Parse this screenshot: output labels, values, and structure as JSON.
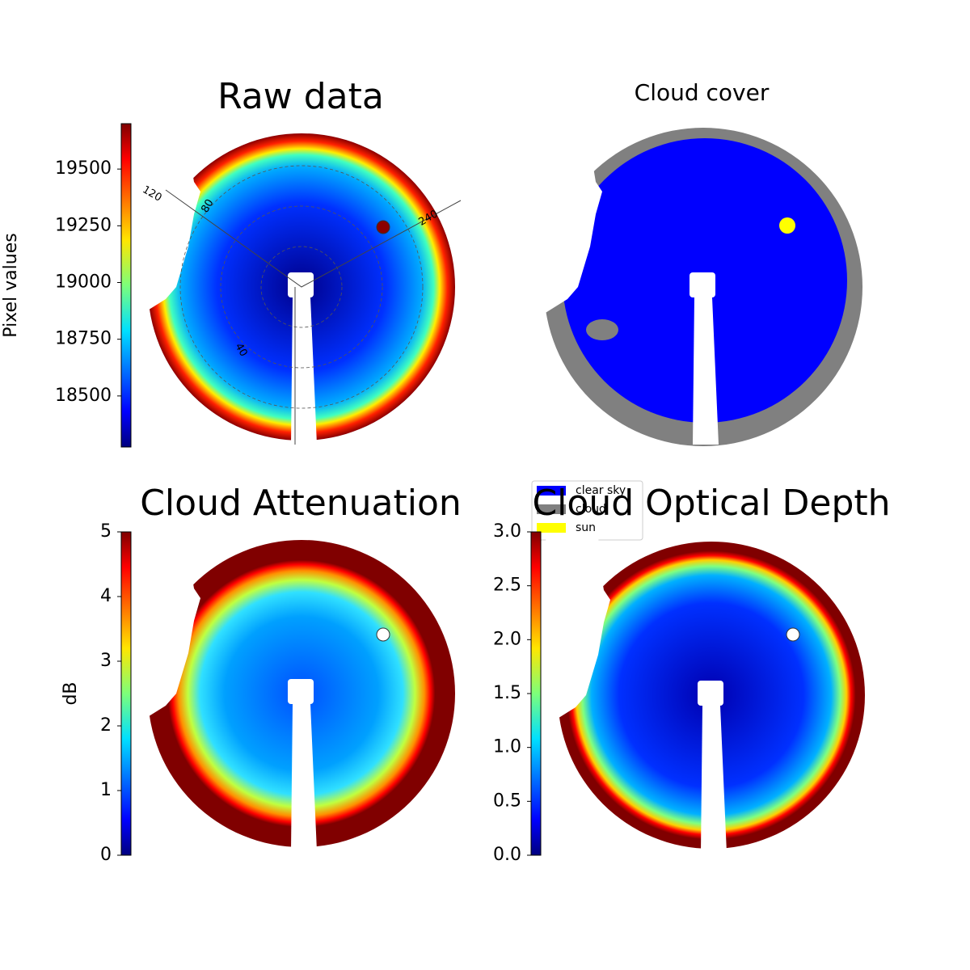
{
  "chart_data": [
    {
      "type": "image",
      "title": "Raw data",
      "colorbar_label": "Pixel values",
      "clim": [
        18275,
        19700
      ],
      "cticks": [
        18500,
        18750,
        19000,
        19250,
        19500
      ],
      "annotations": [
        "120",
        "80",
        "240",
        "40"
      ]
    },
    {
      "type": "categorical_image",
      "title": "Cloud cover",
      "legend_loc": "lower left",
      "legend": [
        {
          "label": "clear sky",
          "color": "#0000ff"
        },
        {
          "label": "cloud",
          "color": "#808080"
        },
        {
          "label": "sun",
          "color": "#ffff00"
        }
      ]
    },
    {
      "type": "image",
      "title": "Cloud Attenuation",
      "colorbar_label": "dB",
      "clim": [
        0,
        5
      ],
      "cticks": [
        0,
        1,
        2,
        3,
        4,
        5
      ]
    },
    {
      "type": "image",
      "title": "Cloud Optical Depth",
      "clim": [
        0,
        3
      ],
      "cticks": [
        {
          "value": 0,
          "label": "0.0"
        },
        0.5,
        {
          "value": 1,
          "label": "1.0"
        },
        1.5,
        {
          "value": 2,
          "label": "2.0"
        },
        2.5,
        {
          "value": 3,
          "label": "3.0"
        }
      ]
    }
  ]
}
